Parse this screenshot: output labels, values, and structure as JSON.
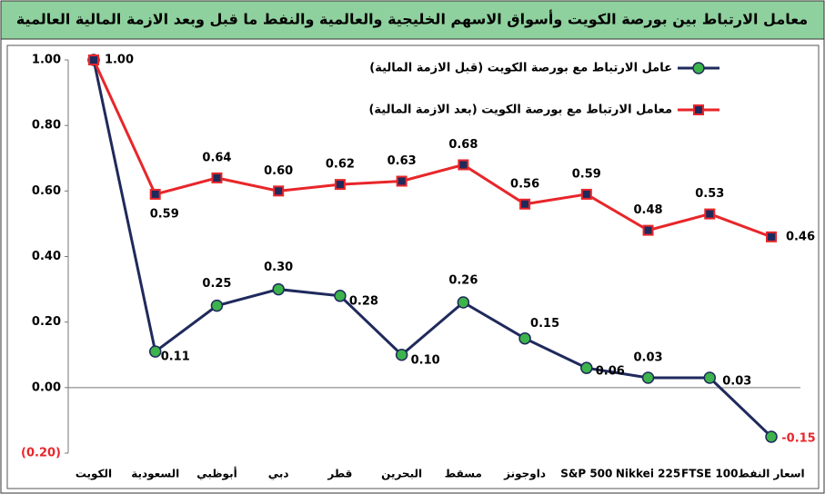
{
  "chart_data": {
    "type": "line",
    "title": "معامل الارتباط بين بورصة الكويت وأسواق الاسهم الخليجية والعالمية والنفط ما قبل وبعد الازمة المالية العالمية",
    "categories": [
      "الكويت",
      "السعودية",
      "أبوظبي",
      "دبي",
      "قطر",
      "البحرين",
      "مسقط",
      "داوجونز",
      "S&P 500",
      "Nikkei 225",
      "FTSE 100",
      "اسعار النفط"
    ],
    "series": [
      {
        "name": "عامل الارتباط مع بورصة الكويت (قبل الازمة المالية)",
        "color": "#1f2a5c",
        "marker_color": "#3cb44b",
        "values": [
          1.0,
          0.11,
          0.25,
          0.3,
          0.28,
          0.1,
          0.26,
          0.15,
          0.06,
          0.03,
          0.03,
          -0.15
        ],
        "value_labels": [
          "1.00",
          "0.11",
          "0.25",
          "0.30",
          "0.28",
          "0.10",
          "0.26",
          "0.15",
          "0.06",
          "0.03",
          "0.03",
          "-0.15"
        ]
      },
      {
        "name": "معامل الارتباط مع بورصة الكويت  (بعد الازمة المالية)",
        "color": "#e8262a",
        "marker_color": "#1f2a5c",
        "values": [
          1.0,
          0.59,
          0.64,
          0.6,
          0.62,
          0.63,
          0.68,
          0.56,
          0.59,
          0.48,
          0.53,
          0.46
        ],
        "value_labels": [
          null,
          "0.59",
          "0.64",
          "0.60",
          "0.62",
          "0.63",
          "0.68",
          "0.56",
          "0.59",
          "0.48",
          "0.53",
          "0.46"
        ]
      }
    ],
    "ylim": [
      -0.2,
      1.0
    ],
    "yticks": [
      {
        "value": 1.0,
        "label": "1.00"
      },
      {
        "value": 0.8,
        "label": "0.80"
      },
      {
        "value": 0.6,
        "label": "0.60"
      },
      {
        "value": 0.4,
        "label": "0.40"
      },
      {
        "value": 0.2,
        "label": "0.20"
      },
      {
        "value": 0,
        "label": "0.00"
      },
      {
        "value": -0.2,
        "label": "(0.20)"
      }
    ],
    "grid": false,
    "legend": "top-right"
  }
}
